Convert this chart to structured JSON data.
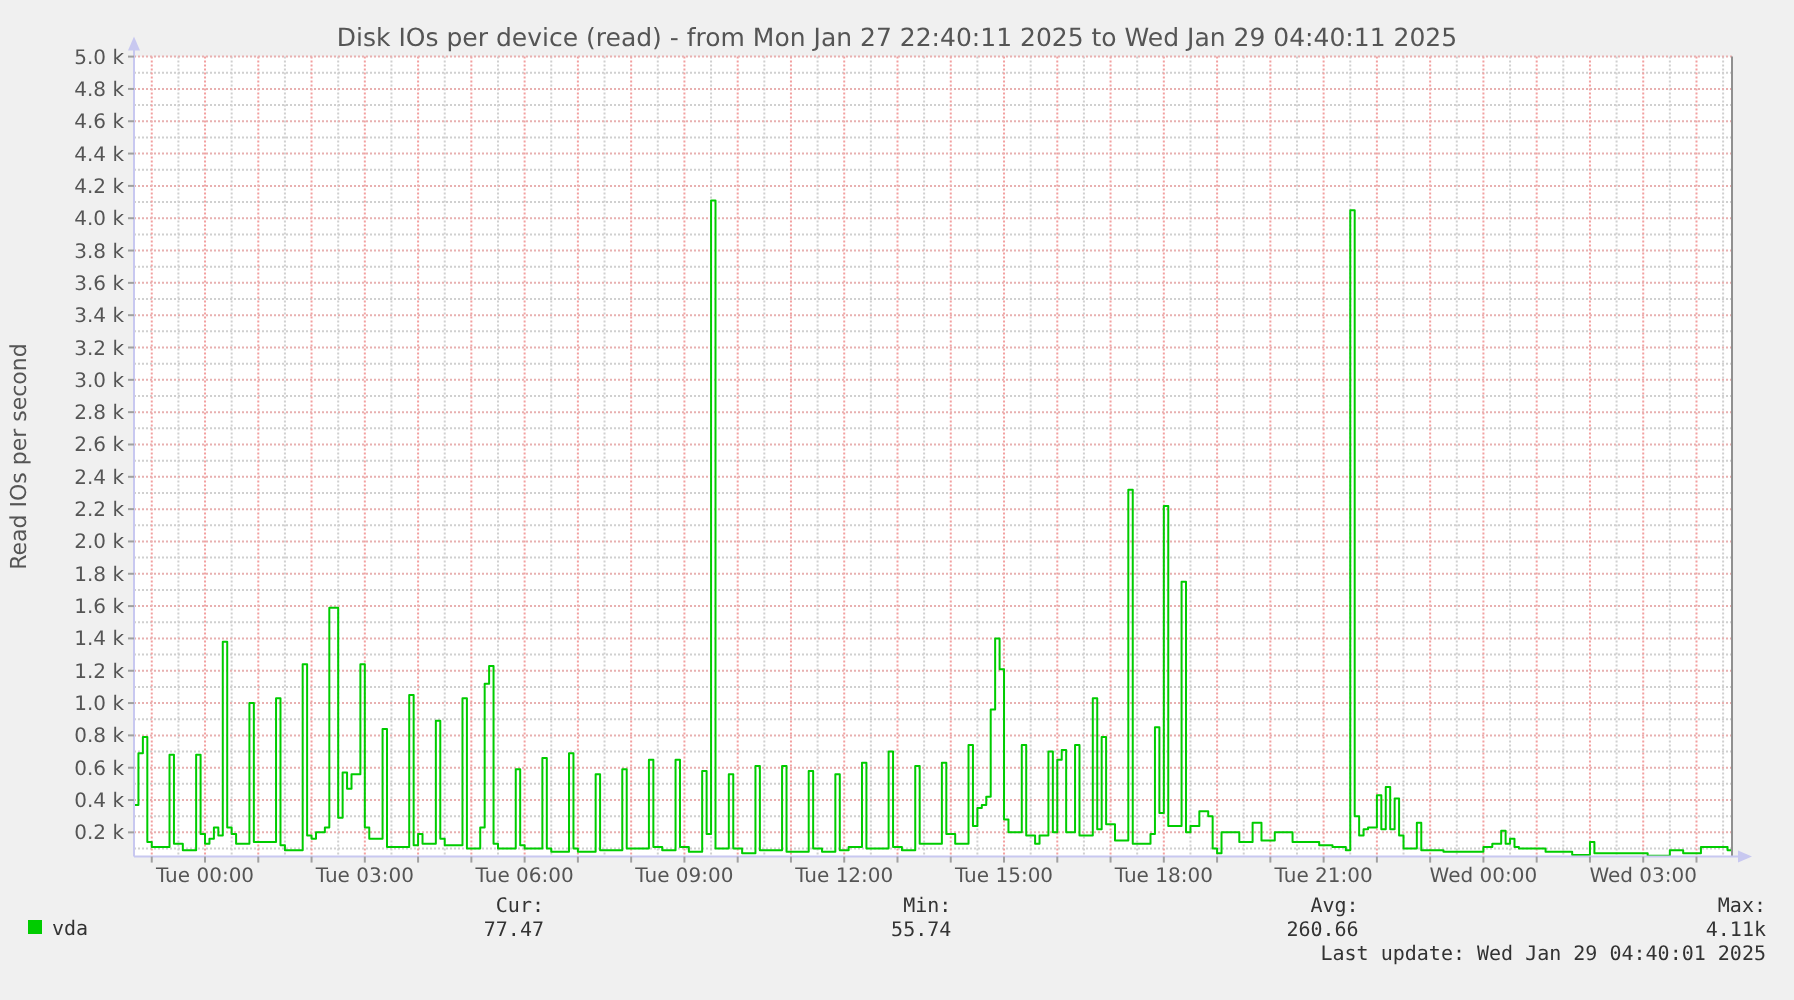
{
  "chart_data": {
    "type": "step",
    "title": "Disk IOs per device (read) - from Mon Jan 27 22:40:11 2025 to Wed Jan 29 04:40:11 2025",
    "ylabel": "Read IOs per second",
    "xlim": [
      "2025-01-27T22:40",
      "2025-01-29T04:40"
    ],
    "ylim": [
      50,
      5000
    ],
    "xticks": [
      {
        "value": "2025-01-27T23:00",
        "label": null
      },
      {
        "value": "2025-01-27T23:30",
        "label": null
      },
      {
        "value": "2025-01-28T00:00",
        "label": "Tue 00:00"
      },
      {
        "value": "2025-01-28T00:30",
        "label": null
      },
      {
        "value": "2025-01-28T01:00",
        "label": null
      },
      {
        "value": "2025-01-28T01:30",
        "label": null
      },
      {
        "value": "2025-01-28T02:00",
        "label": null
      },
      {
        "value": "2025-01-28T02:30",
        "label": null
      },
      {
        "value": "2025-01-28T03:00",
        "label": "Tue 03:00"
      },
      {
        "value": "2025-01-28T03:30",
        "label": null
      },
      {
        "value": "2025-01-28T04:00",
        "label": null
      },
      {
        "value": "2025-01-28T04:30",
        "label": null
      },
      {
        "value": "2025-01-28T05:00",
        "label": null
      },
      {
        "value": "2025-01-28T05:30",
        "label": null
      },
      {
        "value": "2025-01-28T06:00",
        "label": "Tue 06:00"
      },
      {
        "value": "2025-01-28T06:30",
        "label": null
      },
      {
        "value": "2025-01-28T07:00",
        "label": null
      },
      {
        "value": "2025-01-28T07:30",
        "label": null
      },
      {
        "value": "2025-01-28T08:00",
        "label": null
      },
      {
        "value": "2025-01-28T08:30",
        "label": null
      },
      {
        "value": "2025-01-28T09:00",
        "label": "Tue 09:00"
      },
      {
        "value": "2025-01-28T09:30",
        "label": null
      },
      {
        "value": "2025-01-28T10:00",
        "label": null
      },
      {
        "value": "2025-01-28T10:30",
        "label": null
      },
      {
        "value": "2025-01-28T11:00",
        "label": null
      },
      {
        "value": "2025-01-28T11:30",
        "label": null
      },
      {
        "value": "2025-01-28T12:00",
        "label": "Tue 12:00"
      },
      {
        "value": "2025-01-28T12:30",
        "label": null
      },
      {
        "value": "2025-01-28T13:00",
        "label": null
      },
      {
        "value": "2025-01-28T13:30",
        "label": null
      },
      {
        "value": "2025-01-28T14:00",
        "label": null
      },
      {
        "value": "2025-01-28T14:30",
        "label": null
      },
      {
        "value": "2025-01-28T15:00",
        "label": "Tue 15:00"
      },
      {
        "value": "2025-01-28T15:30",
        "label": null
      },
      {
        "value": "2025-01-28T16:00",
        "label": null
      },
      {
        "value": "2025-01-28T16:30",
        "label": null
      },
      {
        "value": "2025-01-28T17:00",
        "label": null
      },
      {
        "value": "2025-01-28T17:30",
        "label": null
      },
      {
        "value": "2025-01-28T18:00",
        "label": "Tue 18:00"
      },
      {
        "value": "2025-01-28T18:30",
        "label": null
      },
      {
        "value": "2025-01-28T19:00",
        "label": null
      },
      {
        "value": "2025-01-28T19:30",
        "label": null
      },
      {
        "value": "2025-01-28T20:00",
        "label": null
      },
      {
        "value": "2025-01-28T20:30",
        "label": null
      },
      {
        "value": "2025-01-28T21:00",
        "label": "Tue 21:00"
      },
      {
        "value": "2025-01-28T21:30",
        "label": null
      },
      {
        "value": "2025-01-28T22:00",
        "label": null
      },
      {
        "value": "2025-01-28T22:30",
        "label": null
      },
      {
        "value": "2025-01-28T23:00",
        "label": null
      },
      {
        "value": "2025-01-28T23:30",
        "label": null
      },
      {
        "value": "2025-01-29T00:00",
        "label": "Wed 00:00"
      },
      {
        "value": "2025-01-29T00:30",
        "label": null
      },
      {
        "value": "2025-01-29T01:00",
        "label": null
      },
      {
        "value": "2025-01-29T01:30",
        "label": null
      },
      {
        "value": "2025-01-29T02:00",
        "label": null
      },
      {
        "value": "2025-01-29T02:30",
        "label": null
      },
      {
        "value": "2025-01-29T03:00",
        "label": "Wed 03:00"
      },
      {
        "value": "2025-01-29T03:30",
        "label": null
      },
      {
        "value": "2025-01-29T04:00",
        "label": null
      },
      {
        "value": "2025-01-29T04:30",
        "label": null
      }
    ],
    "yticks": [
      {
        "value": 100,
        "label": null
      },
      {
        "value": 200,
        "label": "0.2 k"
      },
      {
        "value": 300,
        "label": null
      },
      {
        "value": 400,
        "label": "0.4 k"
      },
      {
        "value": 500,
        "label": null
      },
      {
        "value": 600,
        "label": "0.6 k"
      },
      {
        "value": 700,
        "label": null
      },
      {
        "value": 800,
        "label": "0.8 k"
      },
      {
        "value": 900,
        "label": null
      },
      {
        "value": 1000,
        "label": "1.0 k"
      },
      {
        "value": 1100,
        "label": null
      },
      {
        "value": 1200,
        "label": "1.2 k"
      },
      {
        "value": 1300,
        "label": null
      },
      {
        "value": 1400,
        "label": "1.4 k"
      },
      {
        "value": 1500,
        "label": null
      },
      {
        "value": 1600,
        "label": "1.6 k"
      },
      {
        "value": 1700,
        "label": null
      },
      {
        "value": 1800,
        "label": "1.8 k"
      },
      {
        "value": 1900,
        "label": null
      },
      {
        "value": 2000,
        "label": "2.0 k"
      },
      {
        "value": 2100,
        "label": null
      },
      {
        "value": 2200,
        "label": "2.2 k"
      },
      {
        "value": 2300,
        "label": null
      },
      {
        "value": 2400,
        "label": "2.4 k"
      },
      {
        "value": 2500,
        "label": null
      },
      {
        "value": 2600,
        "label": "2.6 k"
      },
      {
        "value": 2700,
        "label": null
      },
      {
        "value": 2800,
        "label": "2.8 k"
      },
      {
        "value": 2900,
        "label": null
      },
      {
        "value": 3000,
        "label": "3.0 k"
      },
      {
        "value": 3100,
        "label": null
      },
      {
        "value": 3200,
        "label": "3.2 k"
      },
      {
        "value": 3300,
        "label": null
      },
      {
        "value": 3400,
        "label": "3.4 k"
      },
      {
        "value": 3500,
        "label": null
      },
      {
        "value": 3600,
        "label": "3.6 k"
      },
      {
        "value": 3700,
        "label": null
      },
      {
        "value": 3800,
        "label": "3.8 k"
      },
      {
        "value": 3900,
        "label": null
      },
      {
        "value": 4000,
        "label": "4.0 k"
      },
      {
        "value": 4100,
        "label": null
      },
      {
        "value": 4200,
        "label": "4.2 k"
      },
      {
        "value": 4300,
        "label": null
      },
      {
        "value": 4400,
        "label": "4.4 k"
      },
      {
        "value": 4500,
        "label": null
      },
      {
        "value": 4600,
        "label": "4.6 k"
      },
      {
        "value": 4700,
        "label": null
      },
      {
        "value": 4800,
        "label": "4.8 k"
      },
      {
        "value": 4900,
        "label": null
      },
      {
        "value": 5000,
        "label": "5.0 k"
      }
    ],
    "grid": true,
    "legend": "bottom left",
    "line_style": "solid",
    "marker": "none",
    "x": [
      "2025-01-27T22:40",
      "2025-01-27T22:45",
      "2025-01-27T22:50",
      "2025-01-27T22:55",
      "2025-01-27T23:00",
      "2025-01-27T23:20",
      "2025-01-27T23:25",
      "2025-01-27T23:35",
      "2025-01-27T23:50",
      "2025-01-27T23:55",
      "2025-01-28T00:00",
      "2025-01-28T00:05",
      "2025-01-28T00:10",
      "2025-01-28T00:15",
      "2025-01-28T00:20",
      "2025-01-28T00:25",
      "2025-01-28T00:30",
      "2025-01-28T00:35",
      "2025-01-28T00:50",
      "2025-01-28T00:55",
      "2025-01-28T01:20",
      "2025-01-28T01:25",
      "2025-01-28T01:30",
      "2025-01-28T01:50",
      "2025-01-28T01:55",
      "2025-01-28T02:00",
      "2025-01-28T02:05",
      "2025-01-28T02:15",
      "2025-01-28T02:20",
      "2025-01-28T02:30",
      "2025-01-28T02:35",
      "2025-01-28T02:40",
      "2025-01-28T02:45",
      "2025-01-28T02:55",
      "2025-01-28T03:00",
      "2025-01-28T03:05",
      "2025-01-28T03:20",
      "2025-01-28T03:25",
      "2025-01-28T03:50",
      "2025-01-28T03:55",
      "2025-01-28T04:00",
      "2025-01-28T04:05",
      "2025-01-28T04:20",
      "2025-01-28T04:25",
      "2025-01-28T04:30",
      "2025-01-28T04:50",
      "2025-01-28T04:55",
      "2025-01-28T05:10",
      "2025-01-28T05:15",
      "2025-01-28T05:20",
      "2025-01-28T05:25",
      "2025-01-28T05:30",
      "2025-01-28T05:50",
      "2025-01-28T05:55",
      "2025-01-28T06:00",
      "2025-01-28T06:20",
      "2025-01-28T06:25",
      "2025-01-28T06:30",
      "2025-01-28T06:50",
      "2025-01-28T06:55",
      "2025-01-28T07:00",
      "2025-01-28T07:20",
      "2025-01-28T07:25",
      "2025-01-28T07:50",
      "2025-01-28T07:55",
      "2025-01-28T08:20",
      "2025-01-28T08:25",
      "2025-01-28T08:35",
      "2025-01-28T08:50",
      "2025-01-28T08:55",
      "2025-01-28T09:05",
      "2025-01-28T09:20",
      "2025-01-28T09:25",
      "2025-01-28T09:30",
      "2025-01-28T09:35",
      "2025-01-28T09:50",
      "2025-01-28T09:55",
      "2025-01-28T10:05",
      "2025-01-28T10:20",
      "2025-01-28T10:25",
      "2025-01-28T10:50",
      "2025-01-28T10:55",
      "2025-01-28T11:20",
      "2025-01-28T11:25",
      "2025-01-28T11:35",
      "2025-01-28T11:50",
      "2025-01-28T11:55",
      "2025-01-28T12:05",
      "2025-01-28T12:20",
      "2025-01-28T12:25",
      "2025-01-28T12:50",
      "2025-01-28T12:55",
      "2025-01-28T13:05",
      "2025-01-28T13:20",
      "2025-01-28T13:25",
      "2025-01-28T13:50",
      "2025-01-28T13:55",
      "2025-01-28T14:05",
      "2025-01-28T14:20",
      "2025-01-28T14:25",
      "2025-01-28T14:30",
      "2025-01-28T14:35",
      "2025-01-28T14:40",
      "2025-01-28T14:45",
      "2025-01-28T14:50",
      "2025-01-28T14:55",
      "2025-01-28T15:00",
      "2025-01-28T15:05",
      "2025-01-28T15:20",
      "2025-01-28T15:25",
      "2025-01-28T15:35",
      "2025-01-28T15:40",
      "2025-01-28T15:50",
      "2025-01-28T15:55",
      "2025-01-28T16:00",
      "2025-01-28T16:05",
      "2025-01-28T16:10",
      "2025-01-28T16:20",
      "2025-01-28T16:25",
      "2025-01-28T16:40",
      "2025-01-28T16:45",
      "2025-01-28T16:50",
      "2025-01-28T16:55",
      "2025-01-28T17:05",
      "2025-01-28T17:20",
      "2025-01-28T17:25",
      "2025-01-28T17:45",
      "2025-01-28T17:50",
      "2025-01-28T17:55",
      "2025-01-28T18:00",
      "2025-01-28T18:05",
      "2025-01-28T18:20",
      "2025-01-28T18:25",
      "2025-01-28T18:30",
      "2025-01-28T18:40",
      "2025-01-28T18:50",
      "2025-01-28T18:55",
      "2025-01-28T19:00",
      "2025-01-28T19:05",
      "2025-01-28T19:25",
      "2025-01-28T19:40",
      "2025-01-28T19:50",
      "2025-01-28T20:05",
      "2025-01-28T20:25",
      "2025-01-28T20:55",
      "2025-01-28T21:10",
      "2025-01-28T21:25",
      "2025-01-28T21:30",
      "2025-01-28T21:35",
      "2025-01-28T21:40",
      "2025-01-28T21:45",
      "2025-01-28T21:50",
      "2025-01-28T22:00",
      "2025-01-28T22:05",
      "2025-01-28T22:10",
      "2025-01-28T22:15",
      "2025-01-28T22:20",
      "2025-01-28T22:25",
      "2025-01-28T22:30",
      "2025-01-28T22:45",
      "2025-01-28T22:50",
      "2025-01-28T23:15",
      "2025-01-29T00:00",
      "2025-01-29T00:10",
      "2025-01-29T00:20",
      "2025-01-29T00:25",
      "2025-01-29T00:30",
      "2025-01-29T00:35",
      "2025-01-29T00:40",
      "2025-01-29T01:10",
      "2025-01-29T01:40",
      "2025-01-29T02:00",
      "2025-01-29T02:05",
      "2025-01-29T03:05",
      "2025-01-29T03:30",
      "2025-01-29T03:45",
      "2025-01-29T04:05",
      "2025-01-29T04:25",
      "2025-01-29T04:35",
      "2025-01-29T04:40"
    ],
    "series": [
      {
        "name": "vda",
        "color": "#00cc00",
        "values": [
          370,
          690,
          790,
          140,
          110,
          680,
          130,
          90,
          680,
          190,
          130,
          160,
          230,
          180,
          1380,
          230,
          190,
          130,
          1000,
          140,
          1030,
          120,
          90,
          1240,
          180,
          160,
          200,
          230,
          1590,
          290,
          570,
          470,
          560,
          1240,
          230,
          160,
          840,
          110,
          1050,
          120,
          190,
          130,
          890,
          160,
          120,
          1030,
          100,
          230,
          1120,
          1230,
          130,
          100,
          590,
          120,
          100,
          660,
          100,
          80,
          690,
          100,
          80,
          560,
          90,
          590,
          100,
          650,
          110,
          90,
          650,
          110,
          80,
          580,
          190,
          4110,
          100,
          560,
          100,
          70,
          610,
          90,
          610,
          80,
          580,
          100,
          80,
          560,
          90,
          110,
          630,
          100,
          700,
          110,
          90,
          610,
          130,
          630,
          190,
          130,
          740,
          240,
          350,
          370,
          420,
          960,
          1400,
          1210,
          280,
          200,
          740,
          180,
          130,
          180,
          700,
          200,
          650,
          710,
          200,
          740,
          180,
          1030,
          220,
          790,
          250,
          150,
          2320,
          130,
          190,
          850,
          320,
          2220,
          240,
          1750,
          200,
          240,
          330,
          300,
          100,
          70,
          200,
          140,
          260,
          150,
          200,
          140,
          120,
          110,
          90,
          4050,
          300,
          180,
          220,
          230,
          430,
          220,
          480,
          220,
          410,
          180,
          100,
          260,
          90,
          80,
          110,
          130,
          210,
          130,
          160,
          110,
          100,
          80,
          60,
          140,
          70,
          55.74,
          90,
          70,
          110,
          110,
          90,
          77.47
        ]
      }
    ],
    "annotations": [
      "Cur:",
      "77.47",
      "Min:",
      "55.74",
      "Avg:",
      "260.66",
      "Max:",
      "4.11k",
      "Last update: Wed Jan 29 04:40:01 2025"
    ]
  }
}
